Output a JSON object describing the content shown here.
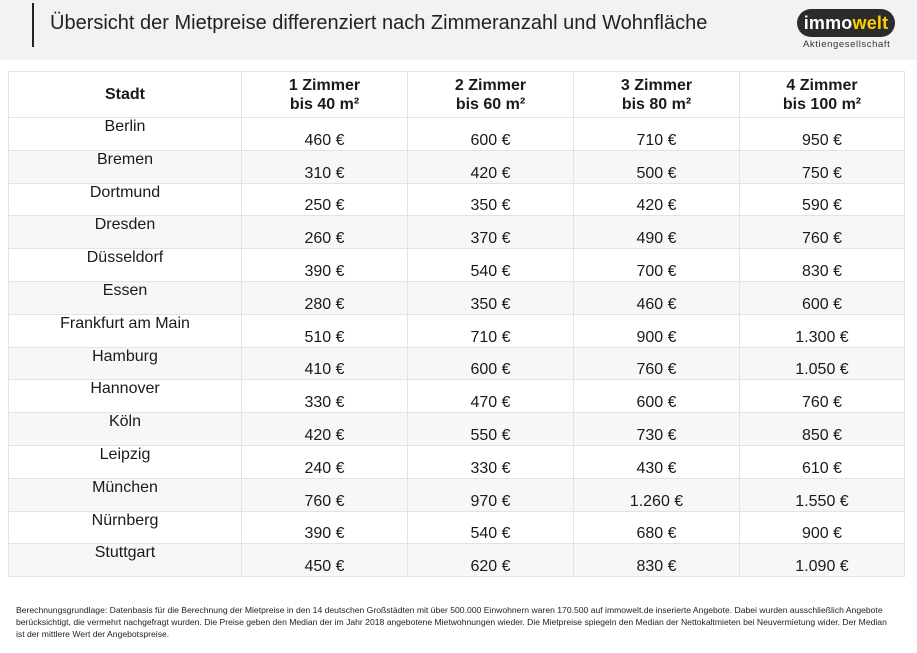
{
  "header": {
    "title": "Übersicht der Mietpreise differenziert nach Zimmeranzahl und Wohnfläche",
    "logo_text_main": "immo",
    "logo_text_accent": "welt",
    "logo_subtitle": "Aktiengesellschaft",
    "logo_accent_color": "#ffce00"
  },
  "table": {
    "headers": [
      "Stadt",
      "1 Zimmer\nbis 40 m²",
      "2 Zimmer\nbis 60 m²",
      "3 Zimmer\nbis 80 m²",
      "4 Zimmer\nbis 100 m²"
    ],
    "rows": [
      [
        "Berlin",
        "460 €",
        "600 €",
        "710 €",
        "950 €"
      ],
      [
        "Bremen",
        "310 €",
        "420 €",
        "500 €",
        "750 €"
      ],
      [
        "Dortmund",
        "250 €",
        "350 €",
        "420 €",
        "590 €"
      ],
      [
        "Dresden",
        "260 €",
        "370 €",
        "490 €",
        "760 €"
      ],
      [
        "Düsseldorf",
        "390 €",
        "540 €",
        "700 €",
        "830 €"
      ],
      [
        "Essen",
        "280 €",
        "350 €",
        "460 €",
        "600 €"
      ],
      [
        "Frankfurt am Main",
        "510 €",
        "710 €",
        "900 €",
        "1.300 €"
      ],
      [
        "Hamburg",
        "410 €",
        "600 €",
        "760 €",
        "1.050 €"
      ],
      [
        "Hannover",
        "330 €",
        "470 €",
        "600 €",
        "760 €"
      ],
      [
        "Köln",
        "420 €",
        "550 €",
        "730 €",
        "850 €"
      ],
      [
        "Leipzig",
        "240 €",
        "330 €",
        "430 €",
        "610 €"
      ],
      [
        "München",
        "760 €",
        "970 €",
        "1.260 €",
        "1.550 €"
      ],
      [
        "Nürnberg",
        "390 €",
        "540 €",
        "680 €",
        "900 €"
      ],
      [
        "Stuttgart",
        "450 €",
        "620 €",
        "830 €",
        "1.090 €"
      ]
    ]
  },
  "footnote": "Berechnungsgrundlage: Datenbasis für die Berechnung der Mietpreise in den 14 deutschen Großstädten mit über 500.000 Einwohnern waren 170.500 auf immowelt.de inserierte Angebote. Dabei wurden ausschließlich Angebote berücksichtigt, die vermehrt nachgefragt wurden. Die Preise geben den Median der im Jahr 2018 angebotene Mietwohnungen wieder. Die Mietpreise spiegeln den Median der Nettokaltmieten bei Neuvermietung wider. Der Median ist der mittlere Wert der Angebotspreise."
}
